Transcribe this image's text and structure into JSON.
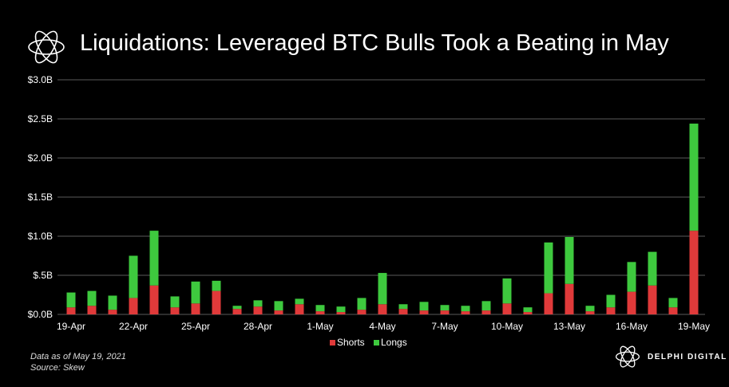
{
  "title": "Liquidations: Leveraged BTC Bulls Took a Beating in May",
  "notes": {
    "line1": "Data as of May 19, 2021",
    "line2": "Source: Skew"
  },
  "brand": {
    "name": "DELPHI DIGITAL"
  },
  "colors": {
    "shorts": "#e03a3a",
    "longs": "#3ec93e",
    "grid": "#5a5a5a",
    "background": "#000000"
  },
  "chart_data": {
    "type": "bar",
    "stacked": true,
    "title": "Liquidations: Leveraged BTC Bulls Took a Beating in May",
    "xlabel": "",
    "ylabel": "",
    "ylim": [
      0,
      3.0
    ],
    "yticks": [
      "$0.0B",
      "$.5B",
      "$1.0B",
      "$1.5B",
      "$2.0B",
      "$2.5B",
      "$3.0B"
    ],
    "ytick_values": [
      0,
      0.5,
      1.0,
      1.5,
      2.0,
      2.5,
      3.0
    ],
    "x_tick_labels": [
      "19-Apr",
      "22-Apr",
      "25-Apr",
      "28-Apr",
      "1-May",
      "4-May",
      "7-May",
      "10-May",
      "13-May",
      "16-May",
      "19-May"
    ],
    "categories": [
      "19-Apr",
      "20-Apr",
      "21-Apr",
      "22-Apr",
      "23-Apr",
      "24-Apr",
      "25-Apr",
      "26-Apr",
      "27-Apr",
      "28-Apr",
      "29-Apr",
      "30-Apr",
      "1-May",
      "2-May",
      "3-May",
      "4-May",
      "5-May",
      "6-May",
      "7-May",
      "8-May",
      "9-May",
      "10-May",
      "11-May",
      "12-May",
      "13-May",
      "14-May",
      "15-May",
      "16-May",
      "17-May",
      "18-May",
      "19-May"
    ],
    "legend": {
      "position": "bottom-center"
    },
    "grid": true,
    "series": [
      {
        "name": "Shorts",
        "color": "#e03a3a",
        "values": [
          0.09,
          0.11,
          0.06,
          0.21,
          0.37,
          0.09,
          0.14,
          0.3,
          0.07,
          0.1,
          0.05,
          0.13,
          0.04,
          0.03,
          0.06,
          0.13,
          0.07,
          0.05,
          0.05,
          0.04,
          0.05,
          0.14,
          0.03,
          0.27,
          0.39,
          0.04,
          0.09,
          0.29,
          0.37,
          0.09,
          1.07
        ]
      },
      {
        "name": "Longs",
        "color": "#3ec93e",
        "values": [
          0.19,
          0.19,
          0.18,
          0.54,
          0.7,
          0.14,
          0.28,
          0.13,
          0.04,
          0.08,
          0.12,
          0.07,
          0.08,
          0.07,
          0.15,
          0.4,
          0.06,
          0.11,
          0.07,
          0.07,
          0.12,
          0.32,
          0.06,
          0.65,
          0.6,
          0.07,
          0.16,
          0.38,
          0.43,
          0.12,
          1.37
        ]
      }
    ]
  }
}
